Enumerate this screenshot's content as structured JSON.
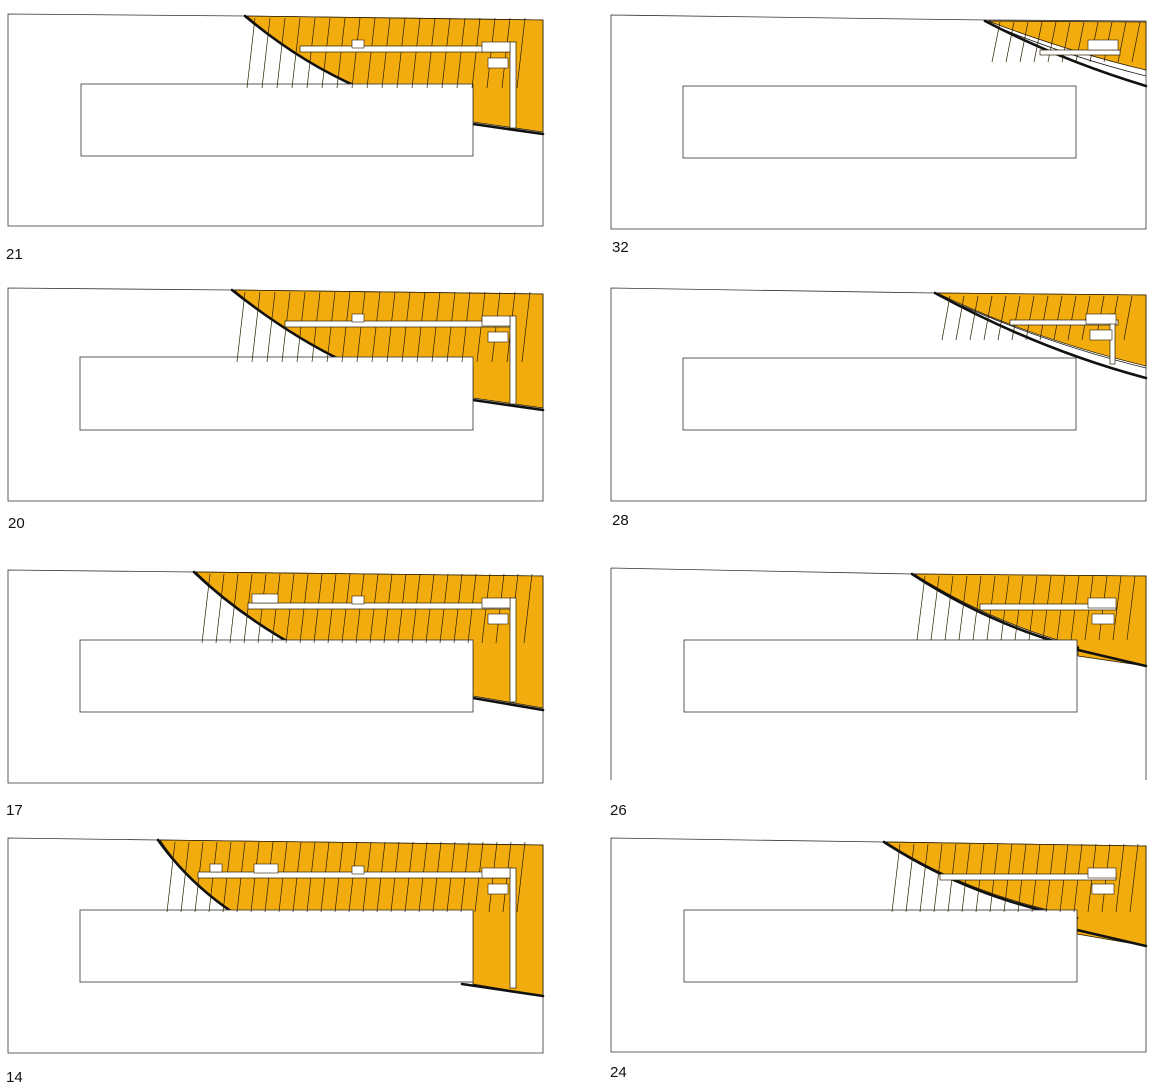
{
  "colors": {
    "seating": "#F3AC0E",
    "outline": "#333333",
    "background": "#FFFFFF"
  },
  "plans": [
    {
      "label": "21"
    },
    {
      "label": "32"
    },
    {
      "label": "20"
    },
    {
      "label": "28"
    },
    {
      "label": "17"
    },
    {
      "label": "26"
    },
    {
      "label": "14"
    },
    {
      "label": "24"
    }
  ]
}
